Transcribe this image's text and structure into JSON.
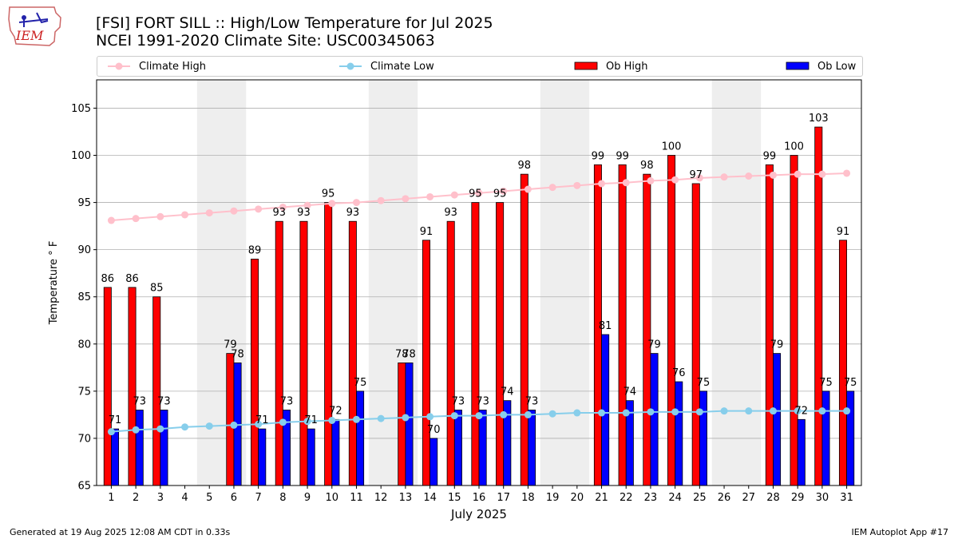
{
  "header": {
    "title_line1": "[FSI] FORT SILL :: High/Low Temperature for Jul 2025",
    "title_line2": "NCEI 1991-2020 Climate Site: USC00345063",
    "logo_text": "IEM"
  },
  "footer": {
    "left": "Generated at 19 Aug 2025 12:08 AM CDT in 0.33s",
    "right": "IEM Autoplot App #17"
  },
  "legend": {
    "climate_high": "Climate High",
    "climate_low": "Climate Low",
    "ob_high": "Ob High",
    "ob_low": "Ob Low"
  },
  "colors": {
    "ob_high": "#ff0000",
    "ob_low": "#0000ff",
    "climate_high": "#ffc0cb",
    "climate_low": "#87ceeb",
    "weekend_band": "#eeeeee",
    "grid": "#b0b0b0"
  },
  "chart_data": {
    "type": "bar",
    "xlabel": "July 2025",
    "ylabel": "Temperature ° F",
    "ylim": [
      65,
      108
    ],
    "yticks": [
      65,
      70,
      75,
      80,
      85,
      90,
      95,
      100,
      105
    ],
    "grid": "horizontal",
    "legend_position": "top",
    "categories": [
      "1",
      "2",
      "3",
      "4",
      "5",
      "6",
      "7",
      "8",
      "9",
      "10",
      "11",
      "12",
      "13",
      "14",
      "15",
      "16",
      "17",
      "18",
      "19",
      "20",
      "21",
      "22",
      "23",
      "24",
      "25",
      "26",
      "27",
      "28",
      "29",
      "30",
      "31"
    ],
    "weekend_bands": [
      [
        5,
        6
      ],
      [
        12,
        13
      ],
      [
        19,
        20
      ],
      [
        26,
        27
      ]
    ],
    "series": [
      {
        "name": "Ob High",
        "kind": "bar",
        "values": [
          86,
          86,
          85,
          null,
          null,
          79,
          89,
          93,
          93,
          95,
          93,
          null,
          78,
          91,
          93,
          95,
          95,
          98,
          null,
          null,
          99,
          99,
          98,
          100,
          97,
          null,
          null,
          99,
          100,
          103,
          91
        ]
      },
      {
        "name": "Ob Low",
        "kind": "bar",
        "values": [
          71,
          73,
          73,
          null,
          null,
          78,
          71,
          73,
          71,
          72,
          75,
          null,
          78,
          70,
          73,
          73,
          74,
          73,
          null,
          null,
          81,
          74,
          79,
          76,
          75,
          null,
          null,
          79,
          72,
          75,
          75
        ]
      },
      {
        "name": "Climate High",
        "kind": "line",
        "values": [
          93.1,
          93.3,
          93.5,
          93.7,
          93.9,
          94.1,
          94.3,
          94.5,
          94.7,
          94.9,
          95.0,
          95.2,
          95.4,
          95.6,
          95.8,
          96.0,
          96.2,
          96.4,
          96.6,
          96.8,
          97.0,
          97.1,
          97.3,
          97.4,
          97.6,
          97.7,
          97.8,
          97.9,
          98.0,
          98.0,
          98.1
        ]
      },
      {
        "name": "Climate Low",
        "kind": "line",
        "values": [
          70.7,
          70.9,
          71.0,
          71.2,
          71.3,
          71.4,
          71.5,
          71.7,
          71.8,
          71.9,
          72.0,
          72.1,
          72.2,
          72.3,
          72.4,
          72.4,
          72.5,
          72.5,
          72.6,
          72.7,
          72.7,
          72.7,
          72.8,
          72.8,
          72.8,
          72.9,
          72.9,
          72.9,
          72.9,
          72.9,
          72.9
        ]
      }
    ]
  }
}
